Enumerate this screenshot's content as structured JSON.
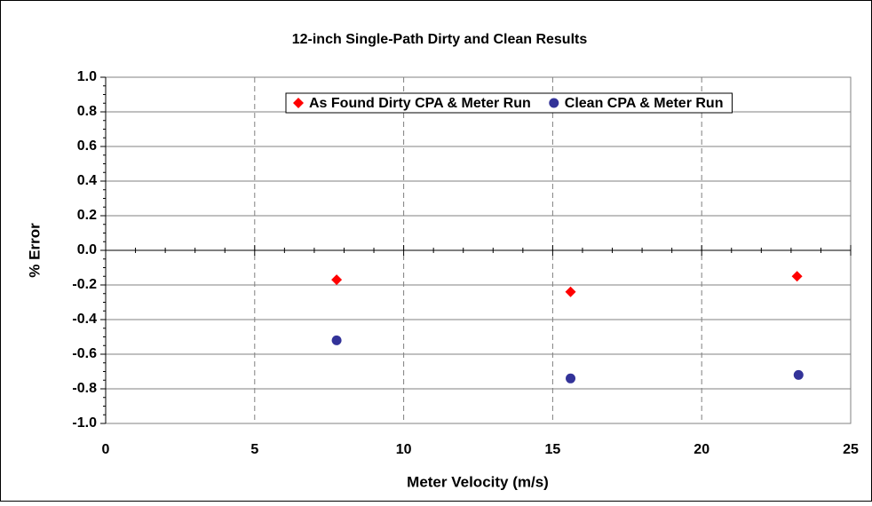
{
  "chart_data": {
    "type": "scatter",
    "title": "12-inch Single-Path Dirty and Clean Results",
    "xlabel": "Meter Velocity (m/s)",
    "ylabel": "% Error",
    "xlim": [
      0,
      25
    ],
    "xticks": [
      0,
      5,
      10,
      15,
      20,
      25
    ],
    "ylim": [
      -1,
      1
    ],
    "yticks": [
      {
        "value": -1,
        "label": "-1.0"
      },
      {
        "value": -0.8,
        "label": "-0.8"
      },
      {
        "value": -0.6,
        "label": "-0.6"
      },
      {
        "value": -0.4,
        "label": "-0.4"
      },
      {
        "value": -0.2,
        "label": "-0.2"
      },
      {
        "value": 0,
        "label": "0.0"
      },
      {
        "value": 0.2,
        "label": "0.2"
      },
      {
        "value": 0.4,
        "label": "0.4"
      },
      {
        "value": 0.6,
        "label": "0.6"
      },
      {
        "value": 0.8,
        "label": "0.8"
      },
      {
        "value": 1,
        "label": "1.0"
      }
    ],
    "grid": true,
    "legend": "top-right",
    "series": [
      {
        "name": "As Found Dirty CPA & Meter Run",
        "color": "#ff0000",
        "marker": "diamond",
        "x": [
          7.75,
          15.6,
          23.2
        ],
        "values": [
          -0.17,
          -0.24,
          -0.15
        ]
      },
      {
        "name": "Clean CPA & Meter Run",
        "color": "#333399",
        "marker": "circle",
        "x": [
          7.75,
          15.6,
          23.25
        ],
        "values": [
          -0.52,
          -0.74,
          -0.72
        ]
      }
    ]
  }
}
